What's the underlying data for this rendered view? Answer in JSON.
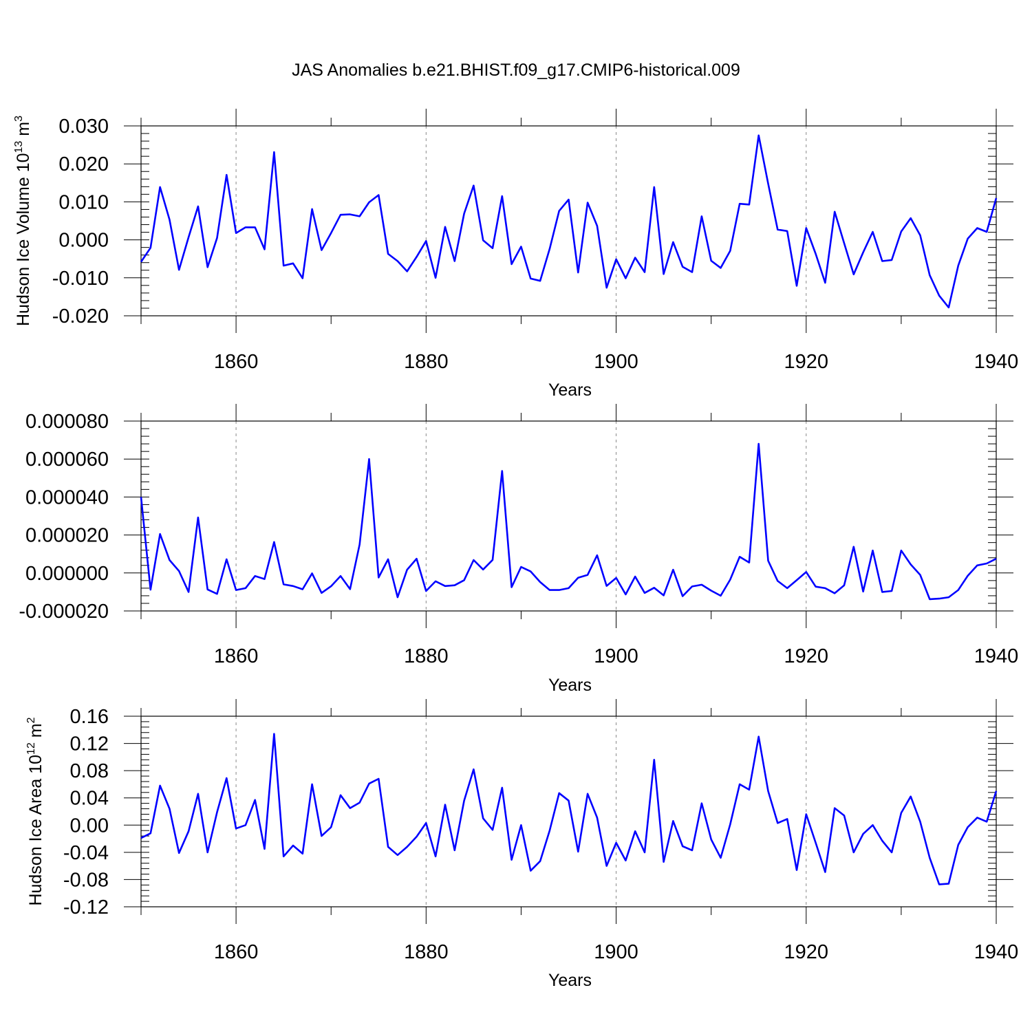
{
  "title": "JAS Anomalies b.e21.BHIST.f09_g17.CMIP6-historical.009",
  "colors": {
    "series": "#0000ff",
    "grid": "#888888",
    "axis": "#000000"
  },
  "chart_data": [
    {
      "type": "line",
      "name": "volume",
      "ylabel": "Hudson Ice Volume 10",
      "ylabel_sup": "13",
      "ylabel_unit": " m",
      "ylabel_unit_sup": "3",
      "xlabel": "Years",
      "xlim": [
        1850,
        1940
      ],
      "ylim": [
        -0.02,
        0.03
      ],
      "yticks": [
        -0.02,
        -0.01,
        0.0,
        0.01,
        0.02,
        0.03
      ],
      "ytick_labels": [
        "-0.020",
        "-0.010",
        "0.000",
        "0.010",
        "0.020",
        "0.030"
      ],
      "yminor_step": 0.002,
      "xticks": [
        1860,
        1880,
        1900,
        1920,
        1940
      ],
      "xtick_labels": [
        "1860",
        "1880",
        "1900",
        "1920",
        "1940"
      ],
      "grid_years": [
        1860,
        1880,
        1900,
        1920
      ],
      "start_year": 1850,
      "values": [
        -0.0058,
        -0.0021,
        0.0139,
        0.0053,
        -0.0079,
        0.0007,
        0.0088,
        -0.0072,
        0.0005,
        0.0171,
        0.0018,
        0.0033,
        0.0033,
        -0.0025,
        0.0231,
        -0.0068,
        -0.0062,
        -0.0101,
        0.0081,
        -0.0027,
        0.0018,
        0.0066,
        0.0067,
        0.0062,
        0.0099,
        0.0118,
        -0.0037,
        -0.0056,
        -0.0083,
        -0.0045,
        -0.0003,
        -0.01,
        0.0034,
        -0.0056,
        0.0069,
        0.0143,
        -0.0001,
        -0.0022,
        0.0115,
        -0.0064,
        -0.0018,
        -0.0102,
        -0.0108,
        -0.0024,
        0.0076,
        0.0106,
        -0.0086,
        0.0098,
        0.0037,
        -0.0126,
        -0.0051,
        -0.0101,
        -0.0047,
        -0.0085,
        0.0139,
        -0.009,
        -0.0006,
        -0.0071,
        -0.0085,
        0.0062,
        -0.0055,
        -0.0074,
        -0.0029,
        0.0095,
        0.0093,
        0.0275,
        0.0148,
        0.0027,
        0.0023,
        -0.0121,
        0.0031,
        -0.0037,
        -0.0113,
        0.0074,
        -0.0009,
        -0.0091,
        -0.0033,
        0.0021,
        -0.0056,
        -0.0053,
        0.0022,
        0.0057,
        0.0012,
        -0.0093,
        -0.0147,
        -0.0178,
        -0.0068,
        0.0003,
        0.0031,
        0.0021,
        0.011
      ]
    },
    {
      "type": "line",
      "name": "middle",
      "ylabel": "",
      "xlabel": "Years",
      "xlim": [
        1850,
        1940
      ],
      "ylim": [
        -2e-05,
        8e-05
      ],
      "yticks": [
        -2e-05,
        0.0,
        2e-05,
        4e-05,
        6e-05,
        8e-05
      ],
      "ytick_labels": [
        "-0.000020",
        "0.000000",
        "0.000020",
        "0.000040",
        "0.000060",
        "0.000080"
      ],
      "yminor_step": 4e-06,
      "xticks": [
        1860,
        1880,
        1900,
        1920,
        1940
      ],
      "xtick_labels": [
        "1860",
        "1880",
        "1900",
        "1920",
        "1940"
      ],
      "grid_years": [
        1860,
        1880,
        1900,
        1920
      ],
      "start_year": 1850,
      "values": [
        4e-05,
        -8.8e-06,
        2.05e-05,
        6.8e-06,
        1e-06,
        -1e-05,
        2.92e-05,
        -8.7e-06,
        -1.1e-05,
        7.2e-06,
        -9e-06,
        -8e-06,
        -1.6e-06,
        -3.2e-06,
        1.63e-05,
        -6e-06,
        -6.9e-06,
        -8.6e-06,
        -2e-07,
        -1.05e-05,
        -7e-06,
        -1.6e-06,
        -8.5e-06,
        1.5e-05,
        6e-05,
        -2.4e-06,
        7.2e-06,
        -1.28e-05,
        1.7e-06,
        7.5e-06,
        -9.5e-06,
        -4.4e-06,
        -6.9e-06,
        -6.5e-06,
        -3.8e-06,
        6.8e-06,
        1.8e-06,
        6.9e-06,
        5.37e-05,
        -7.5e-06,
        3.2e-06,
        8e-07,
        -4.8e-06,
        -9e-06,
        -9e-06,
        -8e-06,
        -2.5e-06,
        -1e-06,
        9.3e-06,
        -6.8e-06,
        -2.6e-06,
        -1.13e-05,
        -1.9e-06,
        -1.05e-05,
        -7.8e-06,
        -1.18e-05,
        1.7e-06,
        -1.22e-05,
        -7.1e-06,
        -6.2e-06,
        -9.3e-06,
        -1.2e-05,
        -3.5e-06,
        8.5e-06,
        5.5e-06,
        6.8e-05,
        6.5e-06,
        -4.2e-06,
        -8e-06,
        -3.8e-06,
        5e-07,
        -7.2e-06,
        -8e-06,
        -1.07e-05,
        -6.5e-06,
        1.38e-05,
        -9.8e-06,
        1.18e-05,
        -1e-05,
        -9.5e-06,
        1.18e-05,
        4.5e-06,
        -1e-06,
        -1.38e-05,
        -1.35e-05,
        -1.28e-05,
        -9e-06,
        -1.5e-06,
        4e-06,
        5e-06,
        7.5e-06
      ]
    },
    {
      "type": "line",
      "name": "area",
      "ylabel": "Hudson Ice Area 10",
      "ylabel_sup": "12",
      "ylabel_unit": " m",
      "ylabel_unit_sup": "2",
      "xlabel": "Years",
      "xlim": [
        1850,
        1940
      ],
      "ylim": [
        -0.12,
        0.16
      ],
      "yticks": [
        -0.12,
        -0.08,
        -0.04,
        0.0,
        0.04,
        0.08,
        0.12,
        0.16
      ],
      "ytick_labels": [
        "-0.12",
        "-0.08",
        "-0.04",
        "0.00",
        "0.04",
        "0.08",
        "0.12",
        "0.16"
      ],
      "yminor_step": 0.008,
      "xticks": [
        1860,
        1880,
        1900,
        1920,
        1940
      ],
      "xtick_labels": [
        "1860",
        "1880",
        "1900",
        "1920",
        "1940"
      ],
      "grid_years": [
        1860,
        1880,
        1900,
        1920
      ],
      "start_year": 1850,
      "values": [
        -0.019,
        -0.012,
        0.058,
        0.024,
        -0.041,
        -0.009,
        0.046,
        -0.04,
        0.019,
        0.069,
        -0.005,
        0.0,
        0.037,
        -0.035,
        0.134,
        -0.046,
        -0.03,
        -0.042,
        0.06,
        -0.016,
        -0.003,
        0.044,
        0.025,
        0.033,
        0.061,
        0.068,
        -0.032,
        -0.044,
        -0.032,
        -0.017,
        0.003,
        -0.046,
        0.03,
        -0.037,
        0.036,
        0.082,
        0.01,
        -0.007,
        0.055,
        -0.051,
        0.0,
        -0.067,
        -0.053,
        -0.008,
        0.047,
        0.036,
        -0.039,
        0.046,
        0.011,
        -0.06,
        -0.026,
        -0.052,
        -0.009,
        -0.04,
        0.096,
        -0.054,
        0.006,
        -0.031,
        -0.037,
        0.032,
        -0.021,
        -0.048,
        0.001,
        0.06,
        0.052,
        0.13,
        0.05,
        0.003,
        0.009,
        -0.066,
        0.016,
        -0.026,
        -0.069,
        0.025,
        0.014,
        -0.04,
        -0.013,
        0.0,
        -0.023,
        -0.04,
        0.018,
        0.042,
        0.005,
        -0.048,
        -0.087,
        -0.086,
        -0.029,
        -0.003,
        0.011,
        0.005,
        0.05
      ]
    }
  ]
}
